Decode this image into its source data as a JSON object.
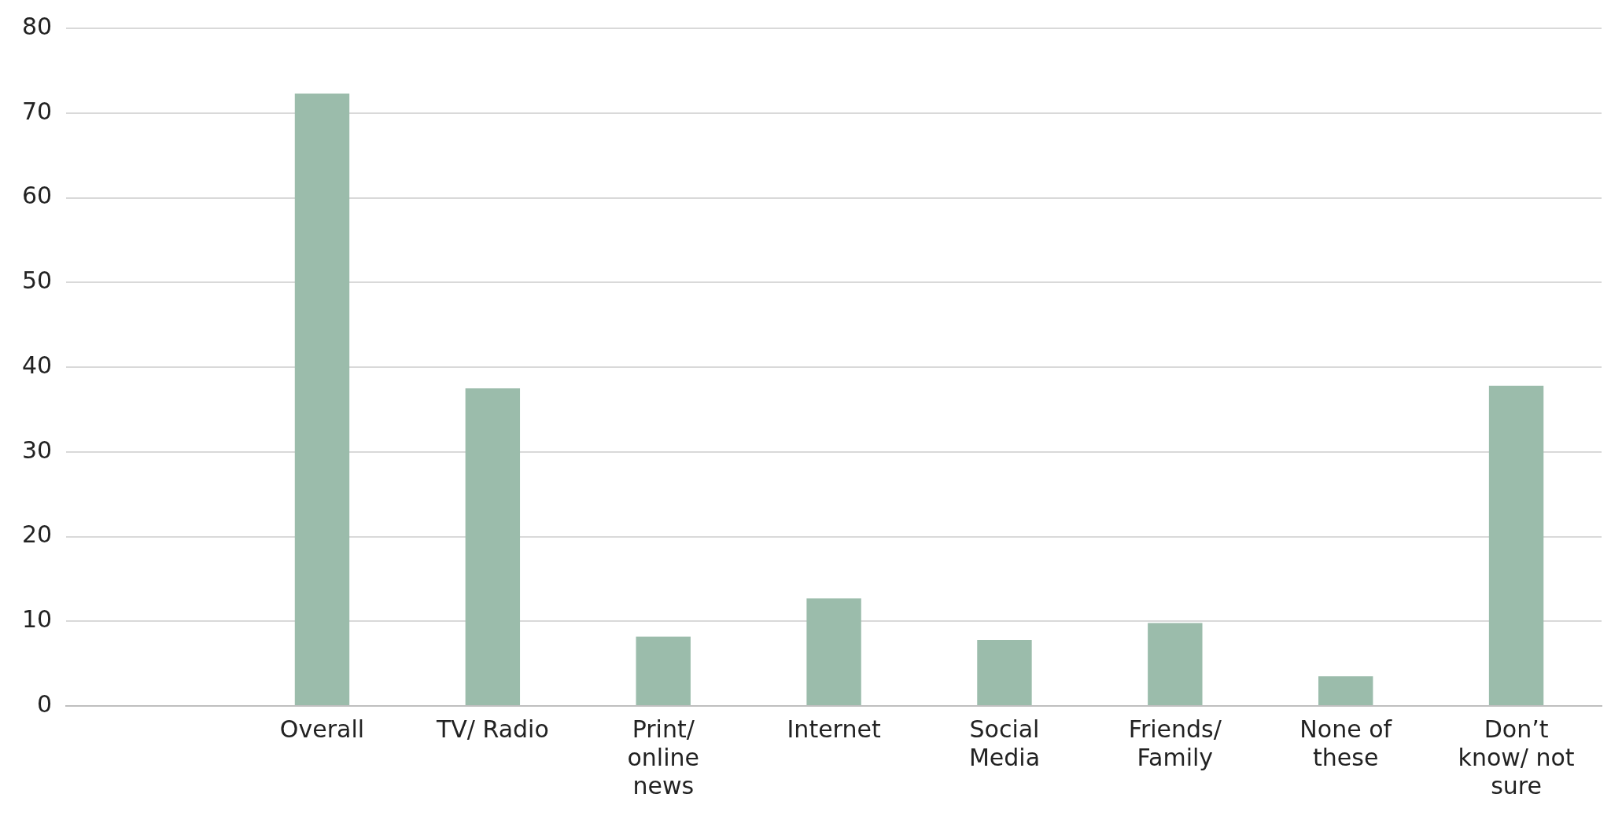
{
  "chart_data": {
    "type": "bar",
    "categories": [
      null,
      "Overall",
      "TV/ Radio",
      "Print/ online news",
      "Internet",
      "Social Media",
      "Friends/ Family",
      "None of these",
      "Don’t know/ not sure"
    ],
    "values": [
      null,
      72.3,
      37.5,
      8.2,
      12.7,
      7.8,
      9.8,
      3.5,
      37.8
    ],
    "color": "#9bbcab",
    "ylim": [
      0,
      80
    ],
    "yticks": [
      0,
      10,
      20,
      30,
      40,
      50,
      60,
      70,
      80
    ],
    "grid": "y",
    "legend": false
  }
}
